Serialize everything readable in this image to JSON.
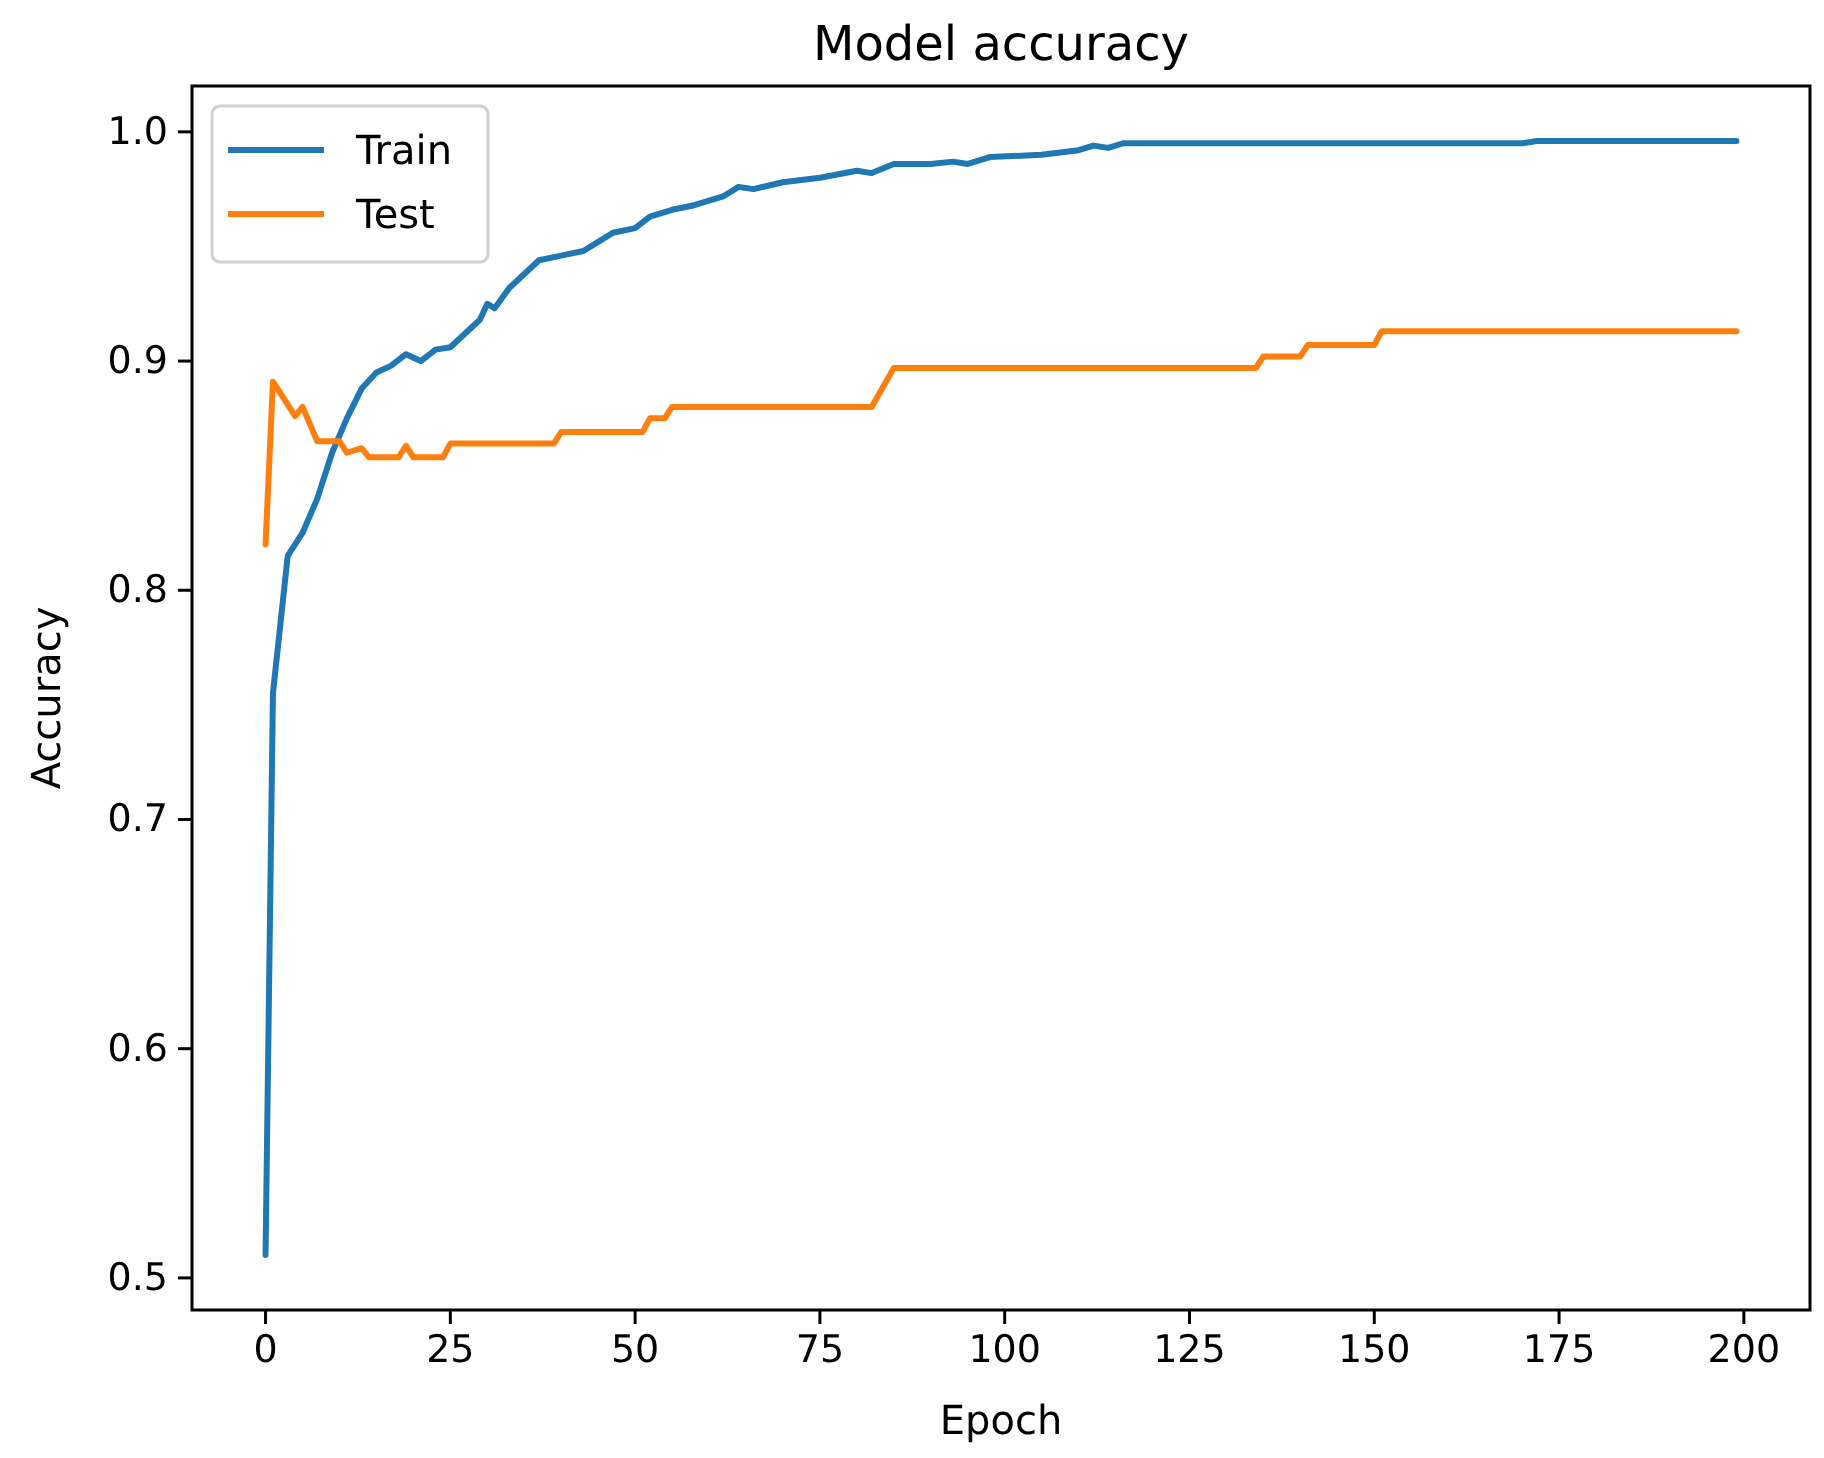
{
  "chart_data": {
    "type": "line",
    "title": "Model accuracy",
    "xlabel": "Epoch",
    "ylabel": "Accuracy",
    "xlim": [
      -9.95,
      208.95
    ],
    "xticks": [
      0,
      25,
      50,
      75,
      100,
      125,
      150,
      175,
      200
    ],
    "ylim": [
      0.486,
      1.02
    ],
    "yticks": [
      {
        "value": 0.5,
        "label": "0.5"
      },
      {
        "value": 0.6,
        "label": "0.6"
      },
      {
        "value": 0.7,
        "label": "0.7"
      },
      {
        "value": 0.8,
        "label": "0.8"
      },
      {
        "value": 0.9,
        "label": "0.9"
      },
      {
        "value": 1.0,
        "label": "1.0"
      }
    ],
    "legend": "top left",
    "grid": false,
    "marker": "none",
    "line_style": "solid",
    "series": [
      {
        "name": "Train",
        "color": "#1f77b4",
        "x": [
          0,
          1,
          3,
          5,
          7,
          9,
          11,
          13,
          15,
          17,
          19,
          21,
          23,
          25,
          27,
          29,
          30,
          31,
          33,
          35,
          37,
          40,
          43,
          45,
          47,
          50,
          52,
          55,
          58,
          62,
          64,
          66,
          70,
          75,
          80,
          82,
          85,
          90,
          93,
          95,
          98,
          105,
          110,
          112,
          114,
          116,
          170,
          172,
          199
        ],
        "values": [
          0.51,
          0.755,
          0.815,
          0.825,
          0.84,
          0.86,
          0.875,
          0.888,
          0.895,
          0.898,
          0.903,
          0.9,
          0.905,
          0.906,
          0.912,
          0.918,
          0.925,
          0.923,
          0.932,
          0.938,
          0.944,
          0.946,
          0.948,
          0.952,
          0.956,
          0.958,
          0.963,
          0.966,
          0.968,
          0.972,
          0.976,
          0.975,
          0.978,
          0.98,
          0.983,
          0.982,
          0.986,
          0.986,
          0.987,
          0.986,
          0.989,
          0.99,
          0.992,
          0.994,
          0.993,
          0.995,
          0.995,
          0.996,
          0.996
        ]
      },
      {
        "name": "Test",
        "color": "#ff7f0e",
        "x": [
          0,
          1,
          4,
          5,
          7,
          10,
          11,
          13,
          14,
          18,
          19,
          20,
          24,
          25,
          39,
          40,
          51,
          52,
          54,
          55,
          82,
          85,
          134,
          135,
          140,
          141,
          150,
          151,
          199
        ],
        "values": [
          0.82,
          0.891,
          0.876,
          0.88,
          0.865,
          0.865,
          0.86,
          0.862,
          0.858,
          0.858,
          0.863,
          0.858,
          0.858,
          0.864,
          0.864,
          0.869,
          0.869,
          0.875,
          0.875,
          0.88,
          0.88,
          0.897,
          0.897,
          0.902,
          0.902,
          0.907,
          0.907,
          0.913,
          0.913
        ]
      }
    ]
  }
}
